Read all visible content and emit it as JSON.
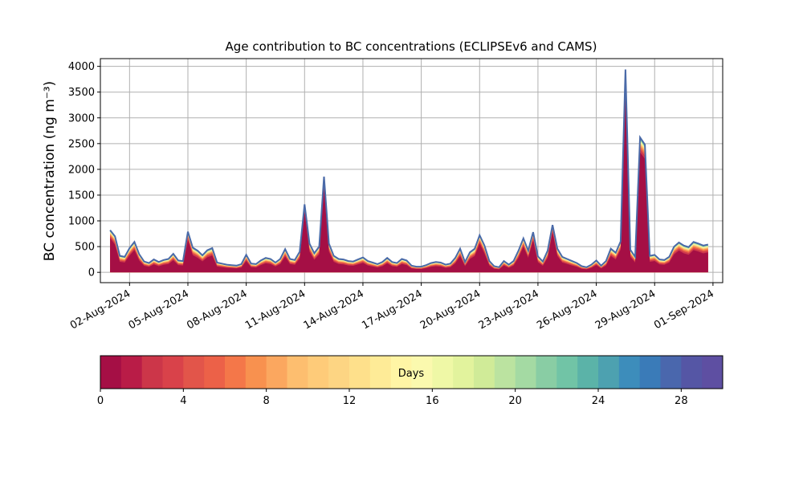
{
  "chart_data": {
    "type": "area",
    "title": "Age contribution to BC concentrations (ECLIPSEv6 and CAMS)",
    "ylabel": "BC concentration (ng m⁻³)",
    "xlabel": "",
    "ylim": [
      -200,
      4150
    ],
    "xlim": [
      "2024-07-31T12:00",
      "2024-09-01T12:00"
    ],
    "grid": true,
    "y_ticks": [
      0,
      500,
      1000,
      1500,
      2000,
      2500,
      3000,
      3500,
      4000
    ],
    "x_ticks": [
      {
        "date": "2024-08-02",
        "label": "02-Aug-2024"
      },
      {
        "date": "2024-08-05",
        "label": "05-Aug-2024"
      },
      {
        "date": "2024-08-08",
        "label": "08-Aug-2024"
      },
      {
        "date": "2024-08-11",
        "label": "11-Aug-2024"
      },
      {
        "date": "2024-08-14",
        "label": "14-Aug-2024"
      },
      {
        "date": "2024-08-17",
        "label": "17-Aug-2024"
      },
      {
        "date": "2024-08-20",
        "label": "20-Aug-2024"
      },
      {
        "date": "2024-08-23",
        "label": "23-Aug-2024"
      },
      {
        "date": "2024-08-26",
        "label": "26-Aug-2024"
      },
      {
        "date": "2024-08-29",
        "label": "29-Aug-2024"
      },
      {
        "date": "2024-09-01",
        "label": "01-Sep-2024"
      }
    ],
    "total_series": [
      [
        "2024-08-01T00:00",
        820
      ],
      [
        "2024-08-01T06:00",
        700
      ],
      [
        "2024-08-01T12:00",
        320
      ],
      [
        "2024-08-01T18:00",
        300
      ],
      [
        "2024-08-02T00:00",
        470
      ],
      [
        "2024-08-02T06:00",
        590
      ],
      [
        "2024-08-02T12:00",
        350
      ],
      [
        "2024-08-02T18:00",
        210
      ],
      [
        "2024-08-03T00:00",
        180
      ],
      [
        "2024-08-03T06:00",
        250
      ],
      [
        "2024-08-03T12:00",
        200
      ],
      [
        "2024-08-03T18:00",
        240
      ],
      [
        "2024-08-04T00:00",
        260
      ],
      [
        "2024-08-04T06:00",
        360
      ],
      [
        "2024-08-04T12:00",
        230
      ],
      [
        "2024-08-04T18:00",
        220
      ],
      [
        "2024-08-05T00:00",
        790
      ],
      [
        "2024-08-05T06:00",
        480
      ],
      [
        "2024-08-05T12:00",
        420
      ],
      [
        "2024-08-05T18:00",
        330
      ],
      [
        "2024-08-06T00:00",
        430
      ],
      [
        "2024-08-06T06:00",
        470
      ],
      [
        "2024-08-06T12:00",
        190
      ],
      [
        "2024-08-06T18:00",
        170
      ],
      [
        "2024-08-07T00:00",
        150
      ],
      [
        "2024-08-07T06:00",
        140
      ],
      [
        "2024-08-07T12:00",
        130
      ],
      [
        "2024-08-07T18:00",
        160
      ],
      [
        "2024-08-08T00:00",
        340
      ],
      [
        "2024-08-08T06:00",
        170
      ],
      [
        "2024-08-08T12:00",
        160
      ],
      [
        "2024-08-08T18:00",
        230
      ],
      [
        "2024-08-09T00:00",
        280
      ],
      [
        "2024-08-09T06:00",
        260
      ],
      [
        "2024-08-09T12:00",
        190
      ],
      [
        "2024-08-09T18:00",
        260
      ],
      [
        "2024-08-10T00:00",
        450
      ],
      [
        "2024-08-10T06:00",
        260
      ],
      [
        "2024-08-10T12:00",
        240
      ],
      [
        "2024-08-10T18:00",
        400
      ],
      [
        "2024-08-11T00:00",
        1320
      ],
      [
        "2024-08-11T06:00",
        560
      ],
      [
        "2024-08-11T12:00",
        370
      ],
      [
        "2024-08-11T18:00",
        500
      ],
      [
        "2024-08-12T00:00",
        1860
      ],
      [
        "2024-08-12T06:00",
        560
      ],
      [
        "2024-08-12T12:00",
        320
      ],
      [
        "2024-08-12T18:00",
        260
      ],
      [
        "2024-08-13T00:00",
        250
      ],
      [
        "2024-08-13T06:00",
        220
      ],
      [
        "2024-08-13T12:00",
        210
      ],
      [
        "2024-08-13T18:00",
        250
      ],
      [
        "2024-08-14T00:00",
        290
      ],
      [
        "2024-08-14T06:00",
        220
      ],
      [
        "2024-08-14T12:00",
        190
      ],
      [
        "2024-08-14T18:00",
        160
      ],
      [
        "2024-08-15T00:00",
        200
      ],
      [
        "2024-08-15T06:00",
        280
      ],
      [
        "2024-08-15T12:00",
        200
      ],
      [
        "2024-08-15T18:00",
        180
      ],
      [
        "2024-08-16T00:00",
        260
      ],
      [
        "2024-08-16T06:00",
        230
      ],
      [
        "2024-08-16T12:00",
        130
      ],
      [
        "2024-08-16T18:00",
        110
      ],
      [
        "2024-08-17T00:00",
        110
      ],
      [
        "2024-08-17T06:00",
        140
      ],
      [
        "2024-08-17T12:00",
        180
      ],
      [
        "2024-08-17T18:00",
        200
      ],
      [
        "2024-08-18T00:00",
        190
      ],
      [
        "2024-08-18T06:00",
        150
      ],
      [
        "2024-08-18T12:00",
        170
      ],
      [
        "2024-08-18T18:00",
        280
      ],
      [
        "2024-08-19T00:00",
        460
      ],
      [
        "2024-08-19T06:00",
        200
      ],
      [
        "2024-08-19T12:00",
        390
      ],
      [
        "2024-08-19T18:00",
        460
      ],
      [
        "2024-08-20T00:00",
        720
      ],
      [
        "2024-08-20T06:00",
        520
      ],
      [
        "2024-08-20T12:00",
        220
      ],
      [
        "2024-08-20T18:00",
        120
      ],
      [
        "2024-08-21T00:00",
        100
      ],
      [
        "2024-08-21T06:00",
        220
      ],
      [
        "2024-08-21T12:00",
        150
      ],
      [
        "2024-08-21T18:00",
        220
      ],
      [
        "2024-08-22T00:00",
        420
      ],
      [
        "2024-08-22T06:00",
        660
      ],
      [
        "2024-08-22T12:00",
        420
      ],
      [
        "2024-08-22T18:00",
        780
      ],
      [
        "2024-08-23T00:00",
        310
      ],
      [
        "2024-08-23T06:00",
        210
      ],
      [
        "2024-08-23T12:00",
        420
      ],
      [
        "2024-08-23T18:00",
        920
      ],
      [
        "2024-08-24T00:00",
        460
      ],
      [
        "2024-08-24T06:00",
        300
      ],
      [
        "2024-08-24T12:00",
        260
      ],
      [
        "2024-08-24T18:00",
        220
      ],
      [
        "2024-08-25T00:00",
        180
      ],
      [
        "2024-08-25T06:00",
        120
      ],
      [
        "2024-08-25T12:00",
        100
      ],
      [
        "2024-08-25T18:00",
        150
      ],
      [
        "2024-08-26T00:00",
        230
      ],
      [
        "2024-08-26T06:00",
        130
      ],
      [
        "2024-08-26T12:00",
        220
      ],
      [
        "2024-08-26T18:00",
        460
      ],
      [
        "2024-08-27T00:00",
        380
      ],
      [
        "2024-08-27T06:00",
        600
      ],
      [
        "2024-08-27T12:00",
        3940
      ],
      [
        "2024-08-27T18:00",
        440
      ],
      [
        "2024-08-28T00:00",
        300
      ],
      [
        "2024-08-28T06:00",
        2620
      ],
      [
        "2024-08-28T12:00",
        2480
      ],
      [
        "2024-08-28T18:00",
        320
      ],
      [
        "2024-08-29T00:00",
        340
      ],
      [
        "2024-08-29T06:00",
        250
      ],
      [
        "2024-08-29T12:00",
        240
      ],
      [
        "2024-08-29T18:00",
        300
      ],
      [
        "2024-08-30T00:00",
        500
      ],
      [
        "2024-08-30T06:00",
        580
      ],
      [
        "2024-08-30T12:00",
        520
      ],
      [
        "2024-08-30T18:00",
        490
      ],
      [
        "2024-08-31T00:00",
        590
      ],
      [
        "2024-08-31T06:00",
        560
      ],
      [
        "2024-08-31T12:00",
        520
      ],
      [
        "2024-08-31T18:00",
        540
      ]
    ],
    "age_bands": {
      "days": [
        0,
        2,
        4,
        6,
        8,
        10,
        12,
        14,
        16,
        20,
        30
      ],
      "colors": [
        "#a50f45",
        "#cf3a4c",
        "#ec6148",
        "#f8914f",
        "#fdbe6f",
        "#fee08b",
        "#f2f9a8",
        "#b6e1a0",
        "#6cc5a3",
        "#4a70b0"
      ]
    },
    "colorbar": {
      "label": "Days",
      "min": 0,
      "max": 30,
      "ticks": [
        0,
        4,
        8,
        12,
        16,
        20,
        24,
        28
      ],
      "colors": [
        "#a50f45",
        "#b91c47",
        "#cc3649",
        "#d9424a",
        "#e2554a",
        "#ec6148",
        "#f47749",
        "#f8914f",
        "#fba75f",
        "#fdbe6f",
        "#fecb79",
        "#fdd583",
        "#fee08b",
        "#feeb97",
        "#fff5a5",
        "#fbf9ae",
        "#eff8a6",
        "#e2f39d",
        "#d0eb98",
        "#bbe3a0",
        "#a4daa3",
        "#89cda4",
        "#71c4a6",
        "#5bb3a8",
        "#4da1b0",
        "#3d8dbb",
        "#3a7bb8",
        "#4a67ad",
        "#5556a5",
        "#5e4fa2"
      ]
    }
  }
}
